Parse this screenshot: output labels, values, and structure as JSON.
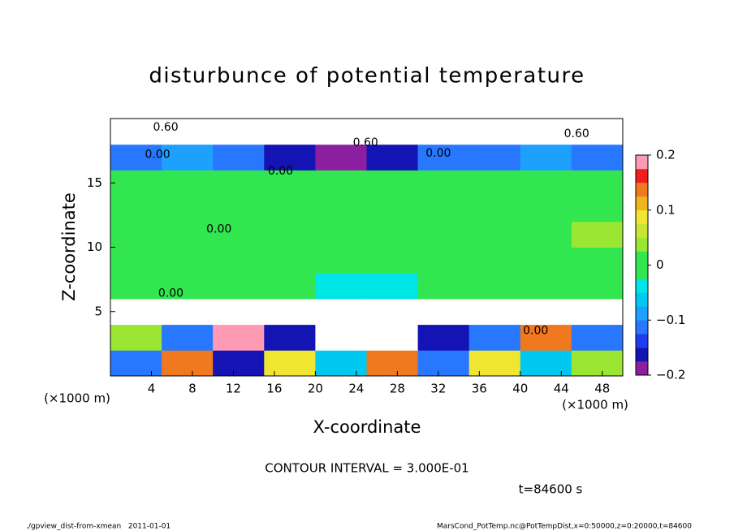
{
  "chart_data": {
    "type": "heatmap",
    "title": "disturbunce of potential temperature",
    "x_label": "X-coordinate",
    "y_label": "Z-coordinate",
    "x_unit": "(×1000 m)",
    "y_unit": "(×1000 m)",
    "xlim": [
      0,
      50
    ],
    "ylim": [
      0,
      20
    ],
    "xticks": [
      4,
      8,
      12,
      16,
      20,
      24,
      28,
      32,
      36,
      40,
      44,
      48
    ],
    "yticks": [
      5,
      10,
      15
    ],
    "z": [
      [
        -0.1,
        0.15,
        -0.15,
        0.1,
        -0.05,
        0.15,
        -0.1,
        0.1,
        -0.05,
        0.05
      ],
      [
        0.05,
        -0.1,
        0.2,
        -0.15,
        -0.3,
        0.25,
        -0.15,
        -0.1,
        0.15,
        -0.1
      ],
      [
        -0.3,
        -0.25,
        -0.3,
        -0.3,
        -0.25,
        -0.3,
        -0.3,
        -0.25,
        -0.3,
        -0.3
      ],
      [
        0.01,
        0,
        0,
        0,
        -0.03,
        -0.03,
        -0.02,
        0,
        0,
        0.01
      ],
      [
        0.01,
        0,
        0,
        0,
        0,
        0,
        0,
        0,
        0.01,
        0.02
      ],
      [
        0.02,
        0,
        0,
        0,
        0,
        0,
        0,
        0,
        0.02,
        0.03
      ],
      [
        0.02,
        0,
        0.01,
        0,
        0,
        0,
        0,
        0,
        0,
        0.02
      ],
      [
        0.01,
        0,
        0,
        0,
        0,
        0,
        0,
        0,
        0,
        0.01
      ],
      [
        -0.1,
        -0.08,
        -0.12,
        -0.15,
        -0.18,
        -0.15,
        -0.12,
        -0.1,
        -0.08,
        -0.1
      ],
      [
        0.3,
        0.25,
        0.3,
        -0.3,
        0.3,
        0.3,
        0.25,
        0.3,
        0.3,
        0.3
      ]
    ],
    "colorbar": {
      "levels": [
        -0.2,
        -0.175,
        -0.15,
        -0.125,
        -0.1,
        -0.075,
        -0.05,
        -0.025,
        0,
        0.025,
        0.05,
        0.075,
        0.1,
        0.125,
        0.15,
        0.175,
        0.2
      ],
      "colors": [
        "#8c1fa0",
        "#1414b4",
        "#1e3cf0",
        "#2878ff",
        "#1ea0ff",
        "#00c8f0",
        "#00e6e6",
        "#32e650",
        "#32e650",
        "#9be632",
        "#c8e632",
        "#f0e632",
        "#f0b41e",
        "#f0781e",
        "#f01e1e",
        "#ff9ab4"
      ],
      "ticks": [
        {
          "value": -0.2,
          "label": "−0.2"
        },
        {
          "value": -0.1,
          "label": "−0.1"
        },
        0,
        0.1,
        0.2
      ]
    },
    "contour_labels": [
      {
        "text": "0.00",
        "x": 10.6,
        "z": 11.4
      },
      {
        "text": "0.00",
        "x": 5.9,
        "z": 6.4
      },
      {
        "text": "0.00",
        "x": 4.6,
        "z": 17.2
      },
      {
        "text": "0.60",
        "x": 5.4,
        "z": 19.3
      },
      {
        "text": "0.60",
        "x": 24.9,
        "z": 18.1
      },
      {
        "text": "0.00",
        "x": 16.6,
        "z": 15.9
      },
      {
        "text": "0.00",
        "x": 32,
        "z": 17.3
      },
      {
        "text": "0.60",
        "x": 45.5,
        "z": 18.8
      },
      {
        "text": "0.00",
        "x": 41.5,
        "z": 3.5
      }
    ],
    "contour_interval": "CONTOUR INTERVAL = 3.000E-01",
    "time_label": "t=84600 s",
    "footer_left": "./gpview_dist-from-xmean   2011-01-01",
    "footer_right": "MarsCond_PotTemp.nc@PotTempDist,x=0:50000,z=0:20000,t=84600"
  }
}
